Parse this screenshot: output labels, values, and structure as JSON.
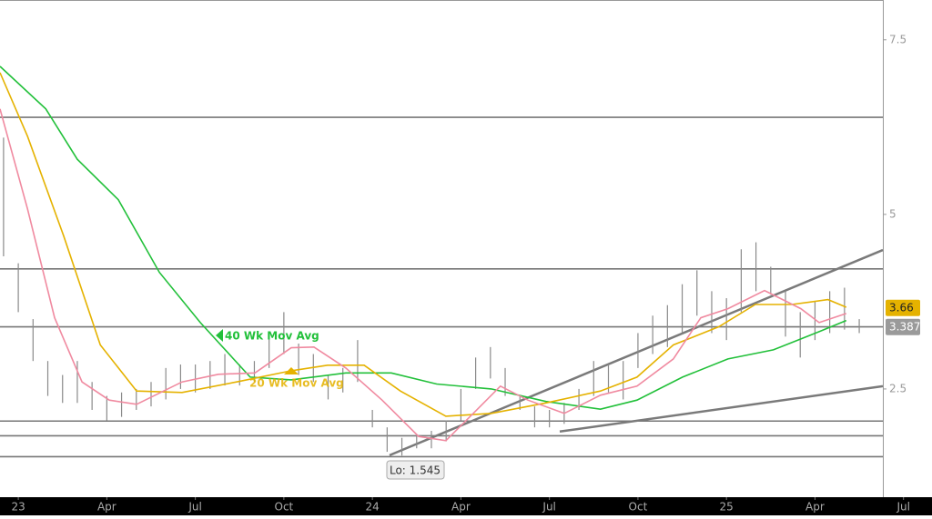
{
  "chart_data": {
    "type": "ohlc",
    "x": [
      -0.5,
      0,
      0.5,
      1,
      1.5,
      2,
      2.5,
      3,
      3.5,
      4,
      4.5,
      5,
      5.5,
      6,
      6.5,
      7,
      7.5,
      8,
      8.5,
      9,
      9.5,
      10,
      10.5,
      11,
      11.5,
      12,
      12.5,
      13,
      13.5,
      14,
      14.5,
      15,
      15.5,
      16,
      16.5,
      17,
      17.5,
      18,
      18.5,
      19,
      19.5,
      20,
      20.5,
      21,
      21.5,
      22,
      22.5,
      23,
      23.5,
      24,
      24.5,
      25,
      25.5,
      26,
      26.5,
      27,
      27.5,
      28,
      28.5
    ],
    "high": [
      6.1,
      4.3,
      3.5,
      2.9,
      2.7,
      2.9,
      2.6,
      2.4,
      2.45,
      2.5,
      2.6,
      2.8,
      2.85,
      2.85,
      2.9,
      3.0,
      2.85,
      2.9,
      3.3,
      3.6,
      3.15,
      3.0,
      2.7,
      2.8,
      3.2,
      2.2,
      1.95,
      1.8,
      1.85,
      1.9,
      2.05,
      2.5,
      2.95,
      3.1,
      2.8,
      2.4,
      2.25,
      2.2,
      2.3,
      2.5,
      2.9,
      2.85,
      2.9,
      3.3,
      3.55,
      3.7,
      4.0,
      4.2,
      3.9,
      3.8,
      4.5,
      4.6,
      4.25,
      3.9,
      3.6,
      3.75,
      3.9,
      3.95,
      3.5
    ],
    "low": [
      4.4,
      3.6,
      2.9,
      2.4,
      2.3,
      2.3,
      2.2,
      2.05,
      2.1,
      2.2,
      2.25,
      2.35,
      2.5,
      2.45,
      2.5,
      2.55,
      2.55,
      2.6,
      2.8,
      3.0,
      2.7,
      2.6,
      2.35,
      2.45,
      2.6,
      1.95,
      1.6,
      1.545,
      1.65,
      1.65,
      1.75,
      2.05,
      2.5,
      2.65,
      2.4,
      2.2,
      1.95,
      1.95,
      2.0,
      2.2,
      2.4,
      2.45,
      2.35,
      2.8,
      3.0,
      3.1,
      3.3,
      3.55,
      3.3,
      3.2,
      3.6,
      3.9,
      3.85,
      3.25,
      2.95,
      3.2,
      3.3,
      3.35,
      3.3
    ],
    "bar_color": "#8a8a8a",
    "series": [
      {
        "name": "40 Wk Mov Avg",
        "color": "#22c03a",
        "x": [
          -0.62,
          0.93,
          2.0,
          3.39,
          4.78,
          6.17,
          7.86,
          9.25,
          11.1,
          12.64,
          14.18,
          16.03,
          17.88,
          19.73,
          20.97,
          22.51,
          24.05,
          25.59,
          27.14,
          28.06
        ],
        "values": [
          7.12,
          6.51,
          5.79,
          5.21,
          4.17,
          3.45,
          2.67,
          2.63,
          2.73,
          2.73,
          2.57,
          2.5,
          2.32,
          2.21,
          2.34,
          2.67,
          2.93,
          3.06,
          3.32,
          3.48
        ]
      },
      {
        "name": "20 Wk Mov Avg",
        "color": "#e5b200",
        "x": [
          -0.62,
          0.31,
          1.54,
          2.78,
          4.01,
          5.55,
          7.4,
          9.25,
          10.48,
          11.72,
          12.95,
          14.49,
          16.03,
          17.88,
          19.73,
          20.97,
          22.2,
          23.74,
          24.98,
          26.21,
          27.44,
          28.06
        ],
        "values": [
          7.03,
          6.12,
          4.69,
          3.13,
          2.47,
          2.45,
          2.6,
          2.76,
          2.84,
          2.84,
          2.47,
          2.11,
          2.15,
          2.3,
          2.47,
          2.67,
          3.13,
          3.39,
          3.71,
          3.71,
          3.78,
          3.67
        ]
      },
      {
        "color": "#f08aa0",
        "x": [
          -0.62,
          0.31,
          1.23,
          2.16,
          3.08,
          4.01,
          5.55,
          6.78,
          8.02,
          9.25,
          10.02,
          11.1,
          12.33,
          13.57,
          14.49,
          15.42,
          16.34,
          17.27,
          18.5,
          19.73,
          20.97,
          22.2,
          23.13,
          24.05,
          25.29,
          26.52,
          27.14,
          28.06
        ],
        "values": [
          6.51,
          5.08,
          3.52,
          2.6,
          2.34,
          2.28,
          2.6,
          2.71,
          2.73,
          3.09,
          3.1,
          2.8,
          2.34,
          1.82,
          1.76,
          2.15,
          2.54,
          2.34,
          2.15,
          2.41,
          2.54,
          2.93,
          3.52,
          3.65,
          3.91,
          3.65,
          3.45,
          3.58
        ]
      }
    ],
    "hlines": [
      6.39,
      4.22,
      3.39,
      2.04,
      1.83,
      1.53
    ],
    "trendlines": [
      {
        "x": [
          12.58,
          29.3
        ],
        "values": [
          1.55,
          4.49
        ]
      },
      {
        "x": [
          18.35,
          29.3
        ],
        "values": [
          1.89,
          2.54
        ]
      }
    ],
    "low_label": "Lo: 1.545",
    "price_labels": [
      {
        "value": 3.66,
        "color": "#e5b200"
      },
      {
        "value": 3.387,
        "color": "#9a9a9a"
      }
    ],
    "xlim": [
      -0.62,
      29.3
    ],
    "ylim": [
      0.95,
      8.07
    ],
    "yticks": [
      2.5,
      5,
      7.5
    ],
    "xticks": [
      {
        "value": 0,
        "label": "23"
      },
      {
        "value": 3,
        "label": "Apr"
      },
      {
        "value": 6,
        "label": "Jul"
      },
      {
        "value": 9,
        "label": "Oct"
      },
      {
        "value": 12,
        "label": "24"
      },
      {
        "value": 15,
        "label": "Apr"
      },
      {
        "value": 18,
        "label": "Jul"
      },
      {
        "value": 21,
        "label": "Oct"
      },
      {
        "value": 24,
        "label": "25"
      },
      {
        "value": 27,
        "label": "Apr"
      },
      {
        "value": 30,
        "label": "Jul"
      }
    ]
  }
}
